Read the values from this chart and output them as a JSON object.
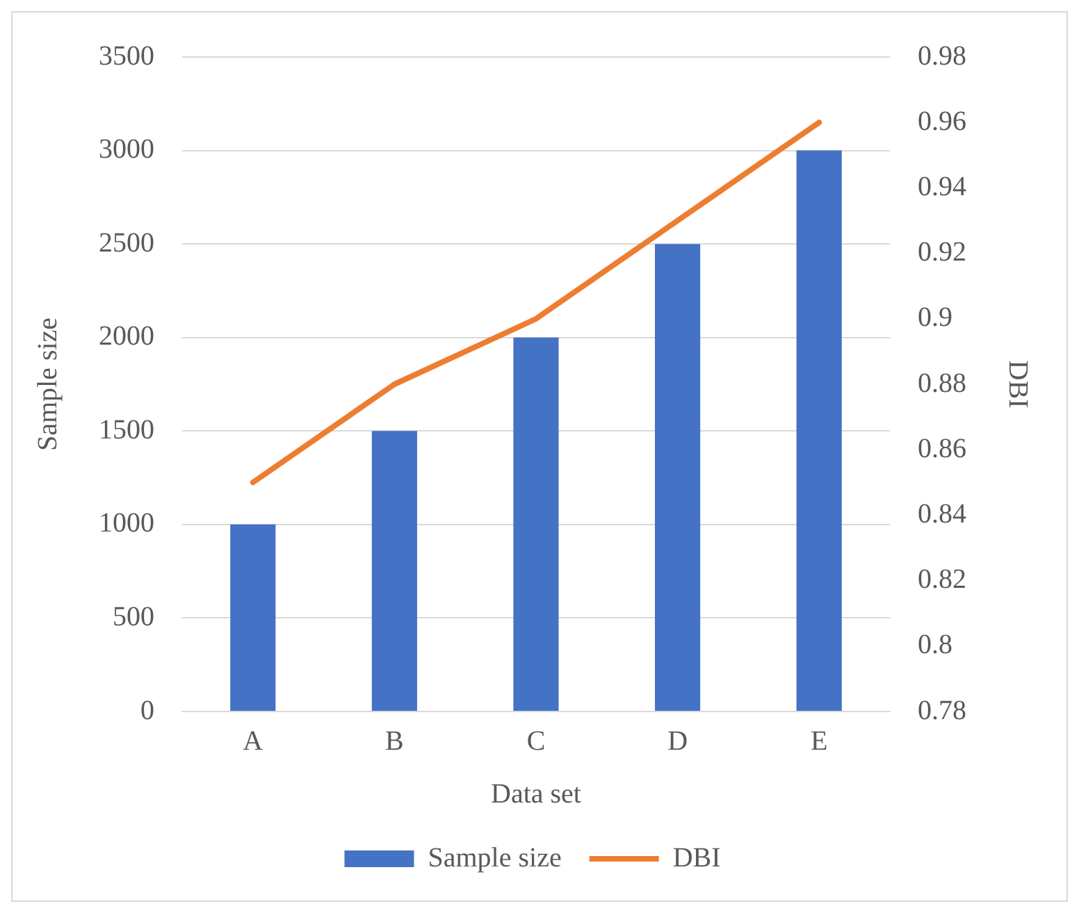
{
  "chart_data": {
    "type": "bar",
    "xlabel": "Data set",
    "ylabel": "Sample size",
    "y2label": "DBI",
    "categories": [
      "A",
      "B",
      "C",
      "D",
      "E"
    ],
    "series": [
      {
        "name": "Sample size",
        "color": "#4472c4",
        "values": [
          1000,
          1500,
          2000,
          2500,
          3000
        ]
      },
      {
        "name": "DBI",
        "type": "line",
        "axis": "y2",
        "color": "#ed7d31",
        "values": [
          0.85,
          0.88,
          0.9,
          0.93,
          0.96
        ]
      }
    ],
    "ylim": [
      0,
      3500
    ],
    "yticks": [
      0,
      500,
      1000,
      1500,
      2000,
      2500,
      3000,
      3500
    ],
    "y2lim": [
      0.78,
      0.98
    ],
    "y2ticks": [
      0.78,
      0.8,
      0.82,
      0.84,
      0.86,
      0.88,
      0.9,
      0.92,
      0.94,
      0.96,
      0.98
    ],
    "grid": "y",
    "legend": "bottom",
    "marker": "none",
    "line_style": "solid"
  }
}
